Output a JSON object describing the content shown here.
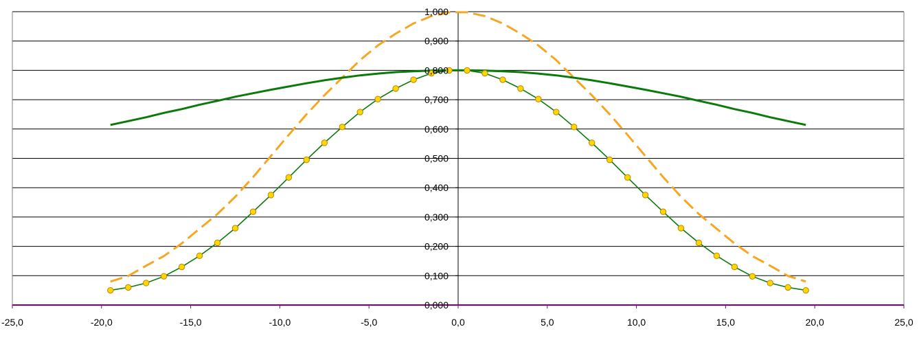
{
  "chart_data": {
    "type": "line",
    "xlim": [
      -25,
      25
    ],
    "ylim": [
      0,
      1
    ],
    "x_ticks": [
      {
        "value": -25,
        "label": "-25,0"
      },
      {
        "value": -20,
        "label": "-20,0"
      },
      {
        "value": -15,
        "label": "-15,0"
      },
      {
        "value": -10,
        "label": "-10,0"
      },
      {
        "value": -5,
        "label": "-5,0"
      },
      {
        "value": 0,
        "label": "0,0"
      },
      {
        "value": 5,
        "label": "5,0"
      },
      {
        "value": 10,
        "label": "10,0"
      },
      {
        "value": 15,
        "label": "15,0"
      },
      {
        "value": 20,
        "label": "20,0"
      },
      {
        "value": 25,
        "label": "25,0"
      }
    ],
    "y_ticks": [
      {
        "value": 0,
        "label": "0,000"
      },
      {
        "value": 0.1,
        "label": "0,100"
      },
      {
        "value": 0.2,
        "label": "0,200"
      },
      {
        "value": 0.3,
        "label": "0,300"
      },
      {
        "value": 0.4,
        "label": "0,400"
      },
      {
        "value": 0.5,
        "label": "0,500"
      },
      {
        "value": 0.6,
        "label": "0,600"
      },
      {
        "value": 0.7,
        "label": "0,700"
      },
      {
        "value": 0.8,
        "label": "0,800"
      },
      {
        "value": 0.9,
        "label": "0,900"
      },
      {
        "value": 1.0,
        "label": "1,000"
      }
    ],
    "grid": "horizontal",
    "colors": {
      "grid": "#000000",
      "x_axis": "#800080",
      "orange": "#f5a623",
      "green": "#0a7a0a",
      "marker_fill": "#ffd700",
      "marker_stroke": "#b8860b"
    },
    "series": [
      {
        "style": "dashed",
        "color": "#f5a623",
        "x": [
          -19.5,
          -18.5,
          -17.5,
          -16.5,
          -15.5,
          -14.5,
          -13.5,
          -12.5,
          -11.5,
          -10.5,
          -9.5,
          -8.5,
          -7.5,
          -6.5,
          -5.5,
          -4.5,
          -3.5,
          -2.5,
          -1.5,
          -0.5,
          0.5,
          1.5,
          2.5,
          3.5,
          4.5,
          5.5,
          6.5,
          7.5,
          8.5,
          9.5,
          10.5,
          11.5,
          12.5,
          13.5,
          14.5,
          15.5,
          16.5,
          17.5,
          18.5,
          19.5
        ],
        "y": [
          0.08,
          0.099,
          0.134,
          0.167,
          0.21,
          0.26,
          0.31,
          0.369,
          0.436,
          0.508,
          0.58,
          0.65,
          0.715,
          0.775,
          0.835,
          0.885,
          0.925,
          0.96,
          0.985,
          0.998,
          0.998,
          0.985,
          0.96,
          0.925,
          0.885,
          0.835,
          0.775,
          0.715,
          0.65,
          0.58,
          0.508,
          0.436,
          0.369,
          0.31,
          0.26,
          0.21,
          0.167,
          0.134,
          0.099,
          0.08
        ]
      },
      {
        "style": "solid",
        "color": "#0a7a0a",
        "x": [
          -19.5,
          -18.5,
          -17.5,
          -16.5,
          -15.5,
          -14.5,
          -13.5,
          -12.5,
          -11.5,
          -10.5,
          -9.5,
          -8.5,
          -7.5,
          -6.5,
          -5.5,
          -4.5,
          -3.5,
          -2.5,
          -1.5,
          -0.5,
          0.5,
          1.5,
          2.5,
          3.5,
          4.5,
          5.5,
          6.5,
          7.5,
          8.5,
          9.5,
          10.5,
          11.5,
          12.5,
          13.5,
          14.5,
          15.5,
          16.5,
          17.5,
          18.5,
          19.5
        ],
        "y": [
          0.614,
          0.627,
          0.64,
          0.655,
          0.668,
          0.683,
          0.696,
          0.71,
          0.722,
          0.734,
          0.745,
          0.756,
          0.766,
          0.775,
          0.783,
          0.789,
          0.794,
          0.797,
          0.799,
          0.8,
          0.8,
          0.799,
          0.797,
          0.794,
          0.789,
          0.783,
          0.775,
          0.766,
          0.756,
          0.745,
          0.734,
          0.722,
          0.71,
          0.696,
          0.683,
          0.668,
          0.655,
          0.64,
          0.627,
          0.614
        ]
      },
      {
        "style": "solid-markers",
        "color": "#0a7a0a",
        "x": [
          -19.5,
          -18.5,
          -17.5,
          -16.5,
          -15.5,
          -14.5,
          -13.5,
          -12.5,
          -11.5,
          -10.5,
          -9.5,
          -8.5,
          -7.5,
          -6.5,
          -5.5,
          -4.5,
          -3.5,
          -2.5,
          -1.5,
          -0.5,
          0.5,
          1.5,
          2.5,
          3.5,
          4.5,
          5.5,
          6.5,
          7.5,
          8.5,
          9.5,
          10.5,
          11.5,
          12.5,
          13.5,
          14.5,
          15.5,
          16.5,
          17.5,
          18.5,
          19.5
        ],
        "y": [
          0.05,
          0.06,
          0.075,
          0.098,
          0.13,
          0.168,
          0.212,
          0.262,
          0.318,
          0.375,
          0.435,
          0.495,
          0.553,
          0.607,
          0.658,
          0.702,
          0.738,
          0.768,
          0.79,
          0.8,
          0.8,
          0.79,
          0.768,
          0.738,
          0.702,
          0.658,
          0.607,
          0.553,
          0.495,
          0.435,
          0.375,
          0.318,
          0.262,
          0.212,
          0.168,
          0.13,
          0.098,
          0.075,
          0.06,
          0.05
        ]
      }
    ]
  }
}
